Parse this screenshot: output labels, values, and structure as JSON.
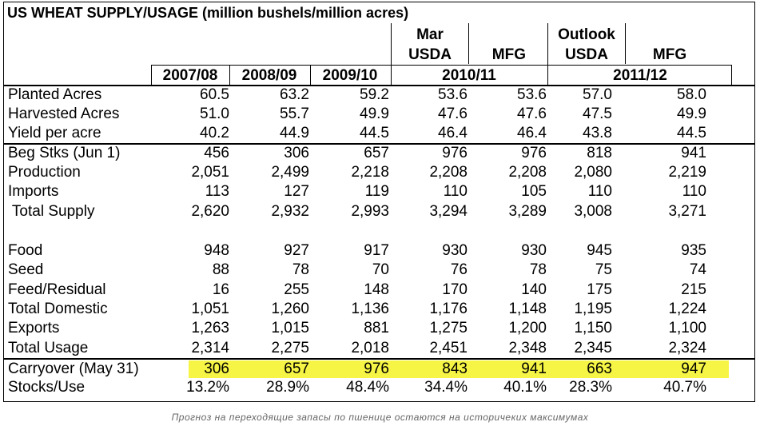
{
  "title": "US WHEAT SUPPLY/USAGE (million bushels/million acres)",
  "header": {
    "top": [
      "Mar",
      "Outlook"
    ],
    "mid": [
      "USDA",
      "MFG",
      "USDA",
      "MFG"
    ],
    "years": [
      "2007/08",
      "2008/09",
      "2009/10",
      "2010/11",
      "2011/12"
    ]
  },
  "rows": [
    {
      "label": "Planted Acres",
      "values": [
        "60.5",
        "63.2",
        "59.2",
        "53.6",
        "53.6",
        "57.0",
        "58.0"
      ]
    },
    {
      "label": "Harvested Acres",
      "values": [
        "51.0",
        "55.7",
        "49.9",
        "47.6",
        "47.6",
        "47.5",
        "49.9"
      ]
    },
    {
      "label": "Yield per acre",
      "values": [
        "40.2",
        "44.9",
        "44.5",
        "46.4",
        "46.4",
        "43.8",
        "44.5"
      ]
    },
    {
      "label": "Beg Stks (Jun 1)",
      "values": [
        "456",
        "306",
        "657",
        "976",
        "976",
        "818",
        "941"
      ]
    },
    {
      "label": "Production",
      "values": [
        "2,051",
        "2,499",
        "2,218",
        "2,208",
        "2,208",
        "2,080",
        "2,219"
      ]
    },
    {
      "label": "Imports",
      "values": [
        "113",
        "127",
        "119",
        "110",
        "105",
        "110",
        "110"
      ]
    },
    {
      "label": " Total Supply",
      "values": [
        "2,620",
        "2,932",
        "2,993",
        "3,294",
        "3,289",
        "3,008",
        "3,271"
      ]
    },
    {
      "label": "Food",
      "values": [
        "948",
        "927",
        "917",
        "930",
        "930",
        "945",
        "935"
      ]
    },
    {
      "label": "Seed",
      "values": [
        "88",
        "78",
        "70",
        "76",
        "78",
        "75",
        "74"
      ]
    },
    {
      "label": "Feed/Residual",
      "values": [
        "16",
        "255",
        "148",
        "170",
        "140",
        "175",
        "215"
      ]
    },
    {
      "label": "Total Domestic",
      "values": [
        "1,051",
        "1,260",
        "1,136",
        "1,176",
        "1,148",
        "1,195",
        "1,224"
      ]
    },
    {
      "label": "Exports",
      "values": [
        "1,263",
        "1,015",
        "881",
        "1,275",
        "1,200",
        "1,150",
        "1,100"
      ]
    },
    {
      "label": "Total Usage",
      "values": [
        "2,314",
        "2,275",
        "2,018",
        "2,451",
        "2,348",
        "2,345",
        "2,324"
      ]
    },
    {
      "label": "Carryover (May 31)",
      "values": [
        "306",
        "657",
        "976",
        "843",
        "941",
        "663",
        "947"
      ]
    },
    {
      "label": "Stocks/Use",
      "values": [
        "13.2%",
        "28.9%",
        "48.4%",
        "34.4%",
        "40.1%",
        "28.3%",
        "40.7%"
      ]
    }
  ],
  "caption": "Прогноз на переходящие запасы по пшенице остаются на историчеких максимумах",
  "colors": {
    "highlight": "#f6f545"
  }
}
